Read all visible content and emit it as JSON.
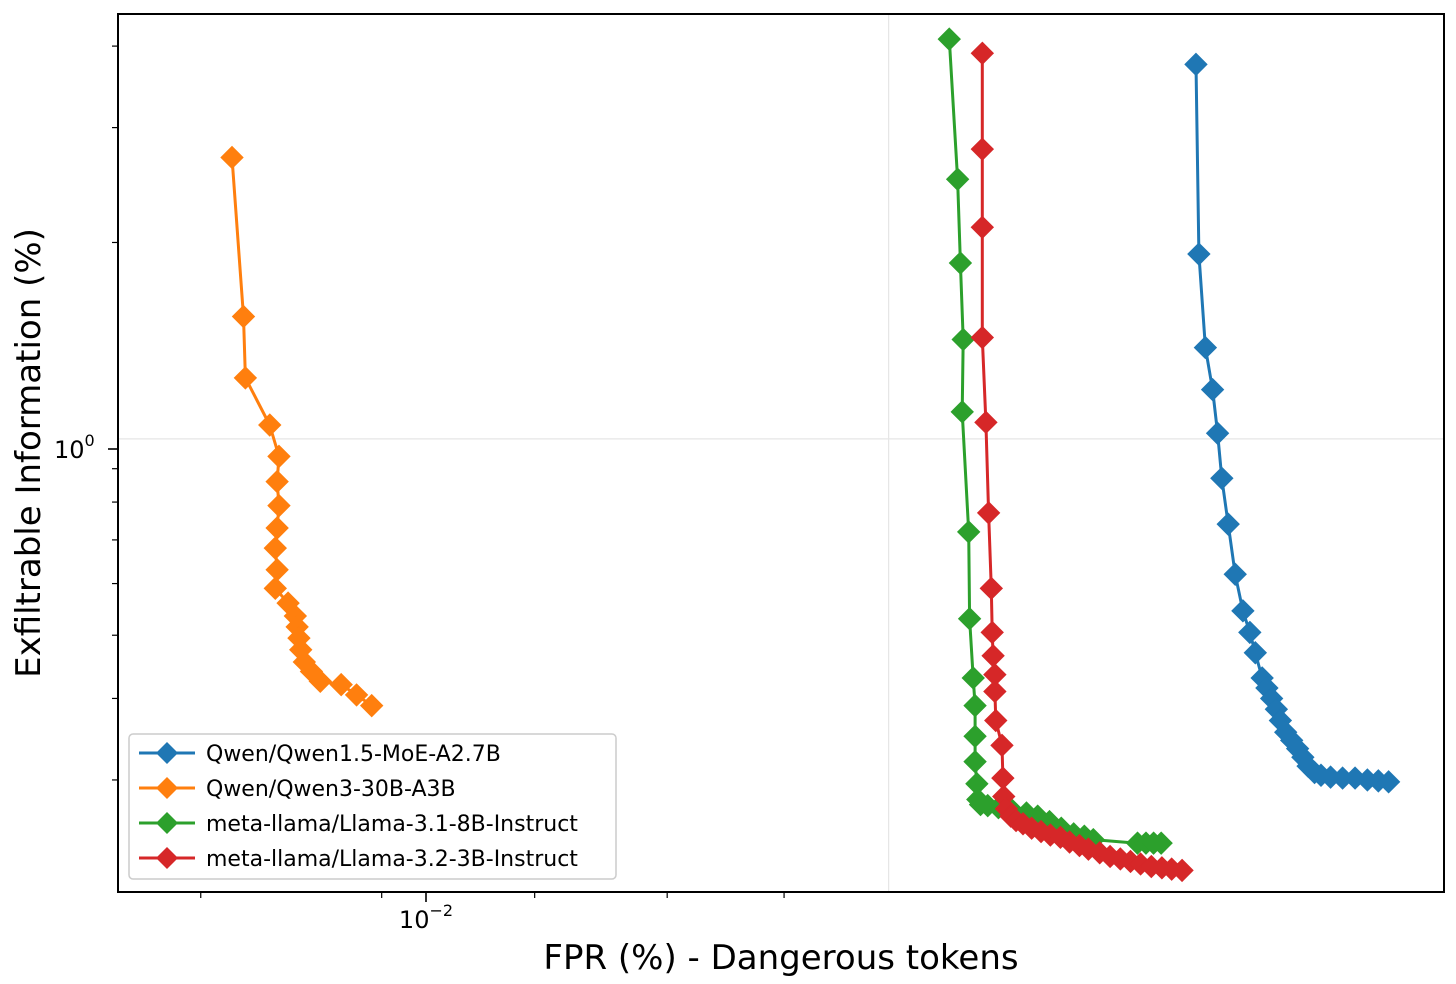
{
  "chart_data": {
    "type": "line",
    "xlabel": "FPR (%) - Dangerous tokens",
    "ylabel": "Exfiltrable Information (%)",
    "xscale": "log",
    "yscale": "log",
    "xlim": [
      0.0046,
      0.0175
    ],
    "ylim": [
      0.202,
      4.48
    ],
    "xtick_labels": [
      {
        "value": 0.01,
        "base": "10",
        "exp": "−2"
      }
    ],
    "ytick_labels": [
      {
        "value": 1.0,
        "base": "10",
        "exp": "0"
      }
    ],
    "grid": true,
    "legend_position": "lower-left",
    "marker": "diamond",
    "series": [
      {
        "name": "Qwen/Qwen1.5-MoE-A2.7B",
        "color": "#1f77b4",
        "points": [
          [
            0.01363,
            3.75
          ],
          [
            0.01367,
            1.92
          ],
          [
            0.01376,
            1.38
          ],
          [
            0.01386,
            1.19
          ],
          [
            0.01393,
            1.02
          ],
          [
            0.01399,
            0.87
          ],
          [
            0.01408,
            0.74
          ],
          [
            0.01418,
            0.62
          ],
          [
            0.01429,
            0.545
          ],
          [
            0.01439,
            0.505
          ],
          [
            0.01447,
            0.47
          ],
          [
            0.01457,
            0.43
          ],
          [
            0.01464,
            0.415
          ],
          [
            0.01471,
            0.4
          ],
          [
            0.01478,
            0.385
          ],
          [
            0.01484,
            0.37
          ],
          [
            0.01492,
            0.355
          ],
          [
            0.01501,
            0.345
          ],
          [
            0.0151,
            0.335
          ],
          [
            0.01518,
            0.325
          ],
          [
            0.01526,
            0.315
          ],
          [
            0.01536,
            0.308
          ],
          [
            0.01546,
            0.305
          ],
          [
            0.01561,
            0.303
          ],
          [
            0.0158,
            0.302
          ],
          [
            0.016,
            0.302
          ],
          [
            0.0162,
            0.3
          ],
          [
            0.01638,
            0.299
          ],
          [
            0.01655,
            0.298
          ]
        ]
      },
      {
        "name": "Qwen/Qwen3-30B-A3B",
        "color": "#ff7f0e",
        "points": [
          [
            0.00516,
            2.7
          ],
          [
            0.00522,
            1.54
          ],
          [
            0.00523,
            1.24
          ],
          [
            0.00536,
            1.05
          ],
          [
            0.00541,
            0.94
          ],
          [
            0.0054,
            0.86
          ],
          [
            0.00541,
            0.79
          ],
          [
            0.0054,
            0.73
          ],
          [
            0.00539,
            0.68
          ],
          [
            0.0054,
            0.63
          ],
          [
            0.00539,
            0.59
          ],
          [
            0.00546,
            0.56
          ],
          [
            0.0055,
            0.535
          ],
          [
            0.00551,
            0.515
          ],
          [
            0.00552,
            0.495
          ],
          [
            0.00553,
            0.475
          ],
          [
            0.00555,
            0.455
          ],
          [
            0.00559,
            0.44
          ],
          [
            0.00564,
            0.425
          ],
          [
            0.00576,
            0.42
          ],
          [
            0.00585,
            0.405
          ],
          [
            0.00594,
            0.39
          ]
        ]
      },
      {
        "name": "meta-llama/Llama-3.1-8B-Instruct",
        "color": "#2ca02c",
        "points": [
          [
            0.01063,
            4.1
          ],
          [
            0.01072,
            2.5
          ],
          [
            0.01075,
            1.86
          ],
          [
            0.01078,
            1.42
          ],
          [
            0.01077,
            1.1
          ],
          [
            0.01084,
            0.72
          ],
          [
            0.01085,
            0.53
          ],
          [
            0.01089,
            0.43
          ],
          [
            0.01091,
            0.39
          ],
          [
            0.01091,
            0.35
          ],
          [
            0.01091,
            0.32
          ],
          [
            0.01093,
            0.296
          ],
          [
            0.01094,
            0.28
          ],
          [
            0.01097,
            0.275
          ],
          [
            0.01105,
            0.274
          ],
          [
            0.01117,
            0.272
          ],
          [
            0.01132,
            0.27
          ],
          [
            0.01149,
            0.267
          ],
          [
            0.01162,
            0.264
          ],
          [
            0.01176,
            0.259
          ],
          [
            0.0119,
            0.253
          ],
          [
            0.01205,
            0.248
          ],
          [
            0.01218,
            0.246
          ],
          [
            0.01229,
            0.243
          ],
          [
            0.01285,
            0.24
          ],
          [
            0.01296,
            0.24
          ],
          [
            0.01306,
            0.24
          ],
          [
            0.01316,
            0.24
          ]
        ]
      },
      {
        "name": "meta-llama/Llama-3.2-3B-Instruct",
        "color": "#d62728",
        "points": [
          [
            0.01099,
            3.9
          ],
          [
            0.01099,
            2.78
          ],
          [
            0.01099,
            2.11
          ],
          [
            0.01099,
            1.43
          ],
          [
            0.01103,
            1.06
          ],
          [
            0.01106,
            0.77
          ],
          [
            0.01109,
            0.59
          ],
          [
            0.0111,
            0.505
          ],
          [
            0.01111,
            0.465
          ],
          [
            0.01113,
            0.435
          ],
          [
            0.01113,
            0.41
          ],
          [
            0.01114,
            0.37
          ],
          [
            0.01121,
            0.339
          ],
          [
            0.01122,
            0.302
          ],
          [
            0.01123,
            0.283
          ],
          [
            0.01126,
            0.271
          ],
          [
            0.01131,
            0.264
          ],
          [
            0.01137,
            0.26
          ],
          [
            0.01145,
            0.257
          ],
          [
            0.01155,
            0.253
          ],
          [
            0.01166,
            0.25
          ],
          [
            0.01177,
            0.247
          ],
          [
            0.01189,
            0.245
          ],
          [
            0.012,
            0.241
          ],
          [
            0.01212,
            0.238
          ],
          [
            0.01223,
            0.235
          ],
          [
            0.01237,
            0.232
          ],
          [
            0.0125,
            0.229
          ],
          [
            0.01263,
            0.227
          ],
          [
            0.01276,
            0.225
          ],
          [
            0.01289,
            0.223
          ],
          [
            0.01303,
            0.221
          ],
          [
            0.01317,
            0.22
          ],
          [
            0.0133,
            0.219
          ],
          [
            0.01344,
            0.218
          ]
        ]
      }
    ]
  }
}
